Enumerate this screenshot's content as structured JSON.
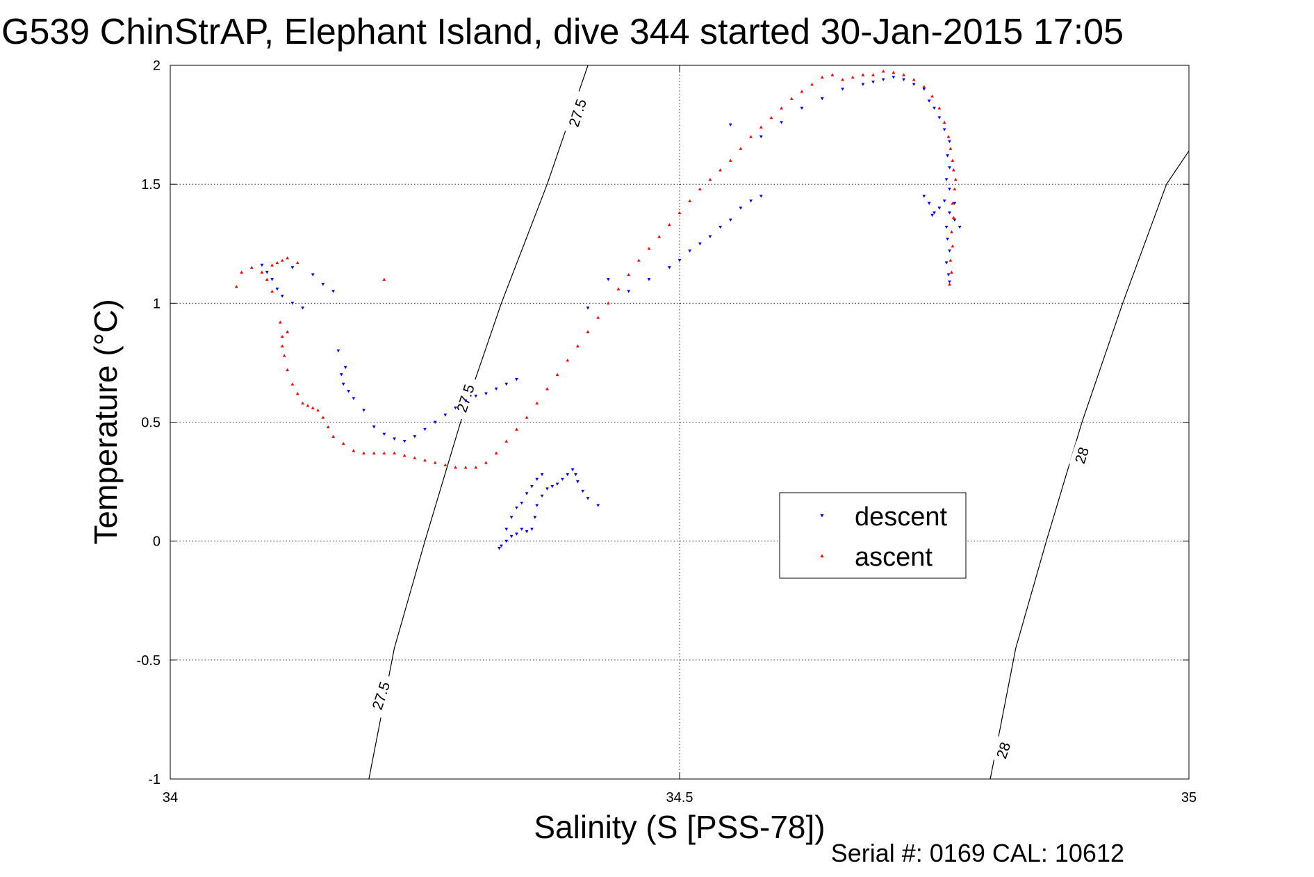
{
  "chart_data": {
    "type": "scatter",
    "title": "G539 ChinStrAP, Elephant Island, dive 344 started 30-Jan-2015 17:05",
    "xlabel": "Salinity (S [PSS-78])",
    "ylabel": "Temperature (°C)",
    "xlim": [
      34,
      35
    ],
    "ylim": [
      -1,
      2
    ],
    "x_ticks": [
      "34",
      "34.5",
      "35"
    ],
    "y_ticks": [
      "-1",
      "-0.5",
      "0",
      "0.5",
      "1",
      "1.5",
      "2"
    ],
    "grid": true,
    "legend_position": "center-right",
    "footer": "Serial #: 0169 CAL: 10612",
    "density_contours": [
      {
        "label": "27.5",
        "points": [
          [
            34.195,
            -1.0
          ],
          [
            34.22,
            -0.45
          ],
          [
            34.25,
            0.0
          ],
          [
            34.285,
            0.5
          ],
          [
            34.325,
            1.0
          ],
          [
            34.37,
            1.5
          ],
          [
            34.41,
            2.0
          ]
        ]
      },
      {
        "label": "28",
        "points": [
          [
            34.805,
            -1.0
          ],
          [
            34.83,
            -0.45
          ],
          [
            34.86,
            0.0
          ],
          [
            34.895,
            0.5
          ],
          [
            34.935,
            1.0
          ],
          [
            34.978,
            1.5
          ],
          [
            35.0,
            1.64
          ]
        ]
      }
    ],
    "contour_labels": [
      {
        "text": "27.5",
        "x": 34.4,
        "y": 1.8
      },
      {
        "text": "27.5",
        "x": 34.29,
        "y": 0.6
      },
      {
        "text": "27.5",
        "x": 34.207,
        "y": -0.65
      },
      {
        "text": "28",
        "x": 34.895,
        "y": 0.36
      },
      {
        "text": "28",
        "x": 34.818,
        "y": -0.88
      }
    ],
    "series": [
      {
        "name": "descent",
        "marker": "triangle-down",
        "color": "#0000ff",
        "points": [
          [
            34.42,
            0.15
          ],
          [
            34.41,
            0.18
          ],
          [
            34.405,
            0.21
          ],
          [
            34.4,
            0.25
          ],
          [
            34.398,
            0.28
          ],
          [
            34.395,
            0.3
          ],
          [
            34.39,
            0.28
          ],
          [
            34.385,
            0.26
          ],
          [
            34.38,
            0.24
          ],
          [
            34.375,
            0.23
          ],
          [
            34.37,
            0.22
          ],
          [
            34.365,
            0.19
          ],
          [
            34.36,
            0.15
          ],
          [
            34.358,
            0.1
          ],
          [
            34.355,
            0.05
          ],
          [
            34.35,
            0.04
          ],
          [
            34.345,
            0.05
          ],
          [
            34.34,
            0.03
          ],
          [
            34.335,
            0.02
          ],
          [
            34.33,
            0.0
          ],
          [
            34.325,
            -0.02
          ],
          [
            34.323,
            -0.03
          ],
          [
            34.33,
            0.05
          ],
          [
            34.335,
            0.1
          ],
          [
            34.34,
            0.14
          ],
          [
            34.345,
            0.16
          ],
          [
            34.35,
            0.2
          ],
          [
            34.355,
            0.23
          ],
          [
            34.36,
            0.26
          ],
          [
            34.365,
            0.28
          ],
          [
            34.34,
            0.68
          ],
          [
            34.33,
            0.66
          ],
          [
            34.32,
            0.64
          ],
          [
            34.31,
            0.62
          ],
          [
            34.3,
            0.61
          ],
          [
            34.29,
            0.59
          ],
          [
            34.28,
            0.56
          ],
          [
            34.27,
            0.53
          ],
          [
            34.26,
            0.5
          ],
          [
            34.25,
            0.47
          ],
          [
            34.24,
            0.44
          ],
          [
            34.23,
            0.42
          ],
          [
            34.22,
            0.43
          ],
          [
            34.21,
            0.45
          ],
          [
            34.2,
            0.48
          ],
          [
            34.19,
            0.55
          ],
          [
            34.18,
            0.6
          ],
          [
            34.175,
            0.63
          ],
          [
            34.17,
            0.66
          ],
          [
            34.168,
            0.7
          ],
          [
            34.172,
            0.73
          ],
          [
            34.165,
            0.8
          ],
          [
            34.13,
            0.98
          ],
          [
            34.12,
            1.0
          ],
          [
            34.11,
            1.03
          ],
          [
            34.105,
            1.06
          ],
          [
            34.1,
            1.1
          ],
          [
            34.095,
            1.13
          ],
          [
            34.09,
            1.16
          ],
          [
            34.12,
            1.15
          ],
          [
            34.14,
            1.12
          ],
          [
            34.15,
            1.08
          ],
          [
            34.16,
            1.05
          ],
          [
            34.41,
            0.98
          ],
          [
            34.43,
            1.1
          ],
          [
            34.45,
            1.05
          ],
          [
            34.47,
            1.1
          ],
          [
            34.49,
            1.15
          ],
          [
            34.5,
            1.18
          ],
          [
            34.51,
            1.22
          ],
          [
            34.52,
            1.25
          ],
          [
            34.53,
            1.28
          ],
          [
            34.54,
            1.32
          ],
          [
            34.55,
            1.35
          ],
          [
            34.56,
            1.4
          ],
          [
            34.57,
            1.43
          ],
          [
            34.58,
            1.45
          ],
          [
            34.55,
            1.75
          ],
          [
            34.58,
            1.7
          ],
          [
            34.6,
            1.76
          ],
          [
            34.62,
            1.82
          ],
          [
            34.64,
            1.86
          ],
          [
            34.66,
            1.9
          ],
          [
            34.68,
            1.92
          ],
          [
            34.69,
            1.93
          ],
          [
            34.7,
            1.94
          ],
          [
            34.71,
            1.95
          ],
          [
            34.72,
            1.94
          ],
          [
            34.73,
            1.92
          ],
          [
            34.74,
            1.9
          ],
          [
            34.745,
            1.85
          ],
          [
            34.75,
            1.82
          ],
          [
            34.755,
            1.78
          ],
          [
            34.76,
            1.73
          ],
          [
            34.765,
            1.68
          ],
          [
            34.763,
            1.62
          ],
          [
            34.765,
            1.57
          ],
          [
            34.762,
            1.52
          ],
          [
            34.765,
            1.48
          ],
          [
            34.77,
            1.42
          ],
          [
            34.765,
            1.38
          ],
          [
            34.762,
            1.32
          ],
          [
            34.763,
            1.27
          ],
          [
            34.765,
            1.22
          ],
          [
            34.762,
            1.17
          ],
          [
            34.764,
            1.12
          ],
          [
            34.765,
            1.09
          ],
          [
            34.74,
            1.45
          ],
          [
            34.745,
            1.42
          ],
          [
            34.75,
            1.38
          ],
          [
            34.755,
            1.4
          ],
          [
            34.76,
            1.43
          ],
          [
            34.77,
            1.35
          ],
          [
            34.775,
            1.32
          ],
          [
            34.748,
            1.37
          ]
        ]
      },
      {
        "name": "ascent",
        "marker": "triangle-up",
        "color": "#ff0000",
        "points": [
          [
            34.765,
            1.08
          ],
          [
            34.767,
            1.13
          ],
          [
            34.766,
            1.18
          ],
          [
            34.768,
            1.24
          ],
          [
            34.767,
            1.3
          ],
          [
            34.769,
            1.36
          ],
          [
            34.768,
            1.42
          ],
          [
            34.77,
            1.48
          ],
          [
            34.771,
            1.52
          ],
          [
            34.769,
            1.56
          ],
          [
            34.768,
            1.6
          ],
          [
            34.766,
            1.65
          ],
          [
            34.764,
            1.7
          ],
          [
            34.76,
            1.76
          ],
          [
            34.755,
            1.82
          ],
          [
            34.748,
            1.87
          ],
          [
            34.74,
            1.91
          ],
          [
            34.73,
            1.94
          ],
          [
            34.72,
            1.96
          ],
          [
            34.71,
            1.97
          ],
          [
            34.7,
            1.975
          ],
          [
            34.69,
            1.96
          ],
          [
            34.68,
            1.96
          ],
          [
            34.67,
            1.95
          ],
          [
            34.66,
            1.94
          ],
          [
            34.65,
            1.96
          ],
          [
            34.64,
            1.95
          ],
          [
            34.63,
            1.92
          ],
          [
            34.62,
            1.89
          ],
          [
            34.61,
            1.86
          ],
          [
            34.6,
            1.82
          ],
          [
            34.59,
            1.78
          ],
          [
            34.58,
            1.74
          ],
          [
            34.57,
            1.7
          ],
          [
            34.56,
            1.65
          ],
          [
            34.55,
            1.6
          ],
          [
            34.54,
            1.56
          ],
          [
            34.53,
            1.52
          ],
          [
            34.52,
            1.48
          ],
          [
            34.51,
            1.43
          ],
          [
            34.5,
            1.38
          ],
          [
            34.49,
            1.33
          ],
          [
            34.48,
            1.28
          ],
          [
            34.47,
            1.23
          ],
          [
            34.46,
            1.18
          ],
          [
            34.45,
            1.12
          ],
          [
            34.44,
            1.06
          ],
          [
            34.43,
            1.0
          ],
          [
            34.42,
            0.94
          ],
          [
            34.41,
            0.88
          ],
          [
            34.4,
            0.82
          ],
          [
            34.39,
            0.76
          ],
          [
            34.38,
            0.7
          ],
          [
            34.37,
            0.64
          ],
          [
            34.36,
            0.58
          ],
          [
            34.35,
            0.52
          ],
          [
            34.34,
            0.47
          ],
          [
            34.33,
            0.42
          ],
          [
            34.32,
            0.37
          ],
          [
            34.31,
            0.33
          ],
          [
            34.3,
            0.31
          ],
          [
            34.29,
            0.31
          ],
          [
            34.28,
            0.31
          ],
          [
            34.27,
            0.32
          ],
          [
            34.26,
            0.33
          ],
          [
            34.25,
            0.34
          ],
          [
            34.24,
            0.35
          ],
          [
            34.23,
            0.36
          ],
          [
            34.22,
            0.37
          ],
          [
            34.21,
            0.37
          ],
          [
            34.2,
            0.37
          ],
          [
            34.19,
            0.37
          ],
          [
            34.18,
            0.38
          ],
          [
            34.17,
            0.41
          ],
          [
            34.16,
            0.44
          ],
          [
            34.155,
            0.48
          ],
          [
            34.15,
            0.52
          ],
          [
            34.145,
            0.55
          ],
          [
            34.14,
            0.56
          ],
          [
            34.135,
            0.57
          ],
          [
            34.13,
            0.58
          ],
          [
            34.125,
            0.62
          ],
          [
            34.12,
            0.66
          ],
          [
            34.115,
            0.72
          ],
          [
            34.112,
            0.78
          ],
          [
            34.11,
            0.82
          ],
          [
            34.11,
            0.86
          ],
          [
            34.115,
            0.88
          ],
          [
            34.108,
            0.92
          ],
          [
            34.1,
            1.05
          ],
          [
            34.095,
            1.1
          ],
          [
            34.09,
            1.13
          ],
          [
            34.1,
            1.16
          ],
          [
            34.105,
            1.17
          ],
          [
            34.11,
            1.18
          ],
          [
            34.115,
            1.19
          ],
          [
            34.125,
            1.17
          ],
          [
            34.08,
            1.15
          ],
          [
            34.07,
            1.13
          ],
          [
            34.065,
            1.07
          ],
          [
            34.21,
            1.1
          ]
        ]
      }
    ]
  }
}
